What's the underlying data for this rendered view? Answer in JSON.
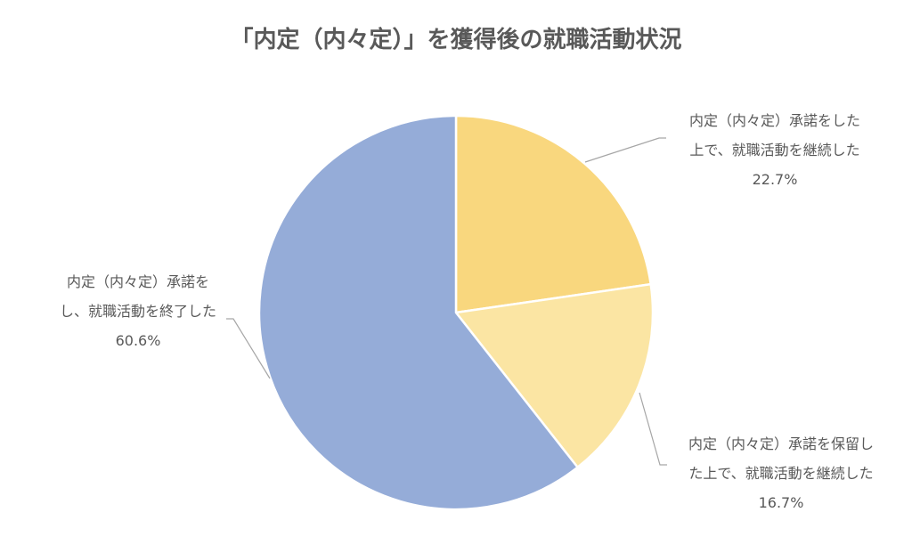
{
  "chart_data": {
    "type": "pie",
    "title": "「内定（内々定）」を獲得後の就職活動状況",
    "start": "top",
    "direction": "clockwise",
    "slices": [
      {
        "label_lines": [
          "内定（内々定）承諾をした",
          "上で、就職活動を継続した"
        ],
        "value": 22.7,
        "value_label": "22.7%",
        "color": "#F9D77E"
      },
      {
        "label_lines": [
          "内定（内々定）承諾を保留し",
          "た上で、就職活動を継続した"
        ],
        "value": 16.7,
        "value_label": "16.7%",
        "color": "#FBE5A3"
      },
      {
        "label_lines": [
          "内定（内々定）承諾を",
          "し、就職活動を終了した"
        ],
        "value": 60.6,
        "value_label": "60.6%",
        "color": "#95ACD8"
      }
    ],
    "legend": "none"
  }
}
